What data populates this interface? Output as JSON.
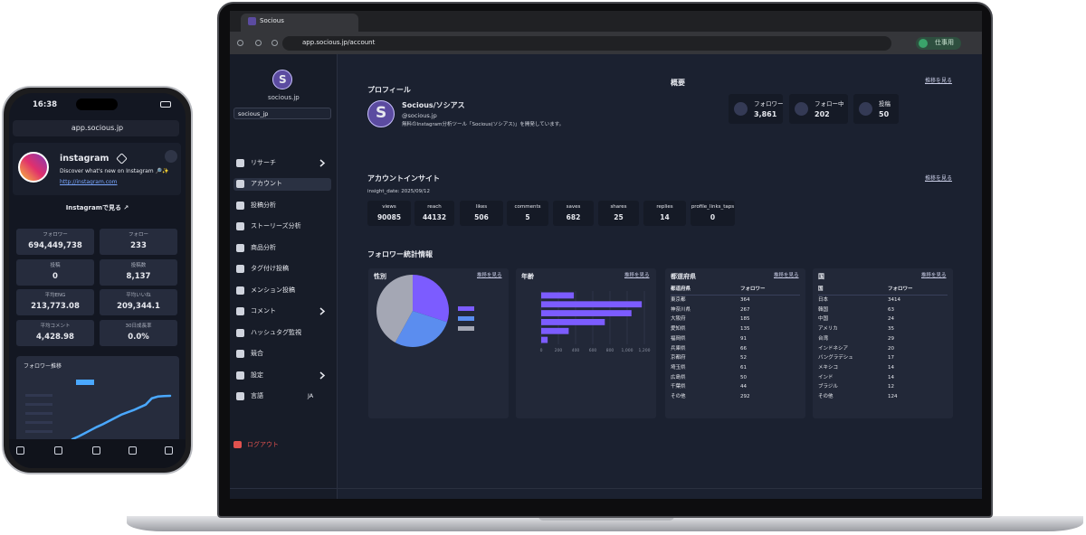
{
  "phone": {
    "time": "16:38",
    "url": "app.socious.jp",
    "profile": {
      "name": "instagram",
      "bio": "Discover what's new on Instagram 🔎✨",
      "link": "http://instagram.com",
      "button": "Instagramで見る ↗"
    },
    "stats": [
      {
        "label": "フォロワー",
        "value": "694,449,738"
      },
      {
        "label": "フォロー",
        "value": "233"
      },
      {
        "label": "投稿",
        "value": "0"
      },
      {
        "label": "投稿数",
        "value": "8,137"
      },
      {
        "label": "平均ENG",
        "value": "213,773.08"
      },
      {
        "label": "平均いいね",
        "value": "209,344.1"
      },
      {
        "label": "平均コメント",
        "value": "4,428.98"
      },
      {
        "label": "30日成長率",
        "value": "0.0%"
      }
    ]
  },
  "browser": {
    "tab": "Socious",
    "url": "app.socious.jp/account",
    "profile": "仕事用"
  },
  "sidebar": {
    "logo": "S",
    "account": "socious.jp",
    "select": "socious_jp",
    "menu": [
      "リサーチ",
      "アカウント",
      "投稿分析",
      "ストーリーズ分析",
      "商品分析",
      "タグ付け投稿",
      "メンション投稿",
      "コメント",
      "ハッシュタグ監視",
      "競合",
      "設定",
      "言語"
    ],
    "language": "JA",
    "logout": "ログアウト"
  },
  "profile": {
    "heading": "プロフィール",
    "avatar": "S",
    "name": "Socious/ソシアス",
    "handle": "@socious.jp",
    "bio": "無料のInstagram分析ツール「Socious(ソシアス)」を開発しています。"
  },
  "overview": {
    "heading": "概要",
    "link": "推移を見る",
    "stats": [
      {
        "label": "フォロワー",
        "value": "3,861"
      },
      {
        "label": "フォロー中",
        "value": "202"
      },
      {
        "label": "投稿",
        "value": "50"
      }
    ]
  },
  "insight": {
    "heading": "アカウントインサイト",
    "link": "推移を見る",
    "date": "insight_date: 2025/09/12",
    "metrics": [
      {
        "label": "views",
        "value": "90085"
      },
      {
        "label": "reach",
        "value": "44132"
      },
      {
        "label": "likes",
        "value": "506"
      },
      {
        "label": "comments",
        "value": "5"
      },
      {
        "label": "saves",
        "value": "682"
      },
      {
        "label": "shares",
        "value": "25"
      },
      {
        "label": "replies",
        "value": "14"
      },
      {
        "label": "profile_links_taps",
        "value": "0"
      }
    ]
  },
  "follower_stats": {
    "heading": "フォロワー統計情報",
    "prefecture": {
      "title": "都道府県",
      "link": "推移を見る",
      "headers": [
        "都道府県",
        "フォロワー"
      ],
      "rows": [
        [
          "東京都",
          "364"
        ],
        [
          "神奈川県",
          "267"
        ],
        [
          "大阪府",
          "185"
        ],
        [
          "愛知県",
          "135"
        ],
        [
          "福岡県",
          "91"
        ],
        [
          "兵庫県",
          "66"
        ],
        [
          "京都府",
          "52"
        ],
        [
          "埼玉県",
          "61"
        ],
        [
          "広島県",
          "50"
        ],
        [
          "千葉県",
          "44"
        ],
        [
          "その他",
          "292"
        ]
      ]
    },
    "country": {
      "title": "国",
      "link": "推移を見る",
      "headers": [
        "国",
        "フォロワー"
      ],
      "rows": [
        [
          "日本",
          "3414"
        ],
        [
          "韓国",
          "63"
        ],
        [
          "中国",
          "24"
        ],
        [
          "アメリカ",
          "35"
        ],
        [
          "台湾",
          "29"
        ],
        [
          "インドネシア",
          "20"
        ],
        [
          "バングラデシュ",
          "17"
        ],
        [
          "メキシコ",
          "14"
        ],
        [
          "インド",
          "14"
        ],
        [
          "ブラジル",
          "12"
        ],
        [
          "その他",
          "124"
        ]
      ]
    }
  },
  "chart_data": [
    {
      "type": "pie",
      "title": "性別",
      "link": "推移を見る",
      "values": [
        30,
        28,
        42
      ],
      "colors": [
        "#7c5cff",
        "#5b8def",
        "#a4a7b4"
      ]
    },
    {
      "type": "bar",
      "title": "年齢",
      "link": "推移を見る",
      "orientation": "horizontal",
      "categories": [
        null,
        null,
        null,
        null,
        null,
        null
      ],
      "values": [
        380,
        1170,
        1050,
        740,
        320,
        75
      ],
      "color": "#7c5cff",
      "xlim": [
        0,
        1200
      ],
      "xticks": [
        0,
        200,
        400,
        600,
        800,
        {
          "value": 1000,
          "label": "1,000"
        },
        {
          "value": 1200,
          "label": "1,200"
        }
      ],
      "grid": true
    },
    {
      "type": "line",
      "title": "フォロワー推移",
      "values": [
        0,
        60,
        130,
        200,
        270,
        330,
        400,
        470,
        540,
        590,
        640,
        700,
        760,
        900,
        940,
        950,
        955
      ],
      "color": "#4aa8ff"
    }
  ]
}
